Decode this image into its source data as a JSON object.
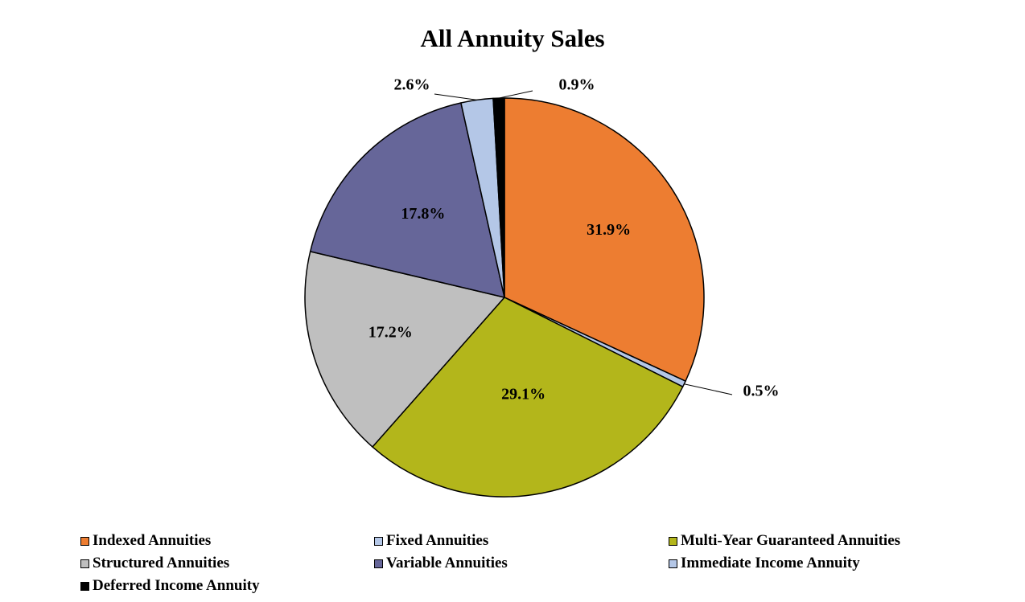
{
  "chart_data": {
    "type": "pie",
    "title": "All Annuity Sales",
    "slices": [
      {
        "name": "Indexed Annuities",
        "value": 31.9,
        "label": "31.9%",
        "color": "#ED7D31"
      },
      {
        "name": "Fixed Annuities",
        "value": 0.5,
        "label": "0.5%",
        "color": "#B4C7E7"
      },
      {
        "name": "Multi-Year Guaranteed Annuities",
        "value": 29.1,
        "label": "29.1%",
        "color": "#B3B61B"
      },
      {
        "name": "Structured Annuities",
        "value": 17.2,
        "label": "17.2%",
        "color": "#BFBFBF"
      },
      {
        "name": "Variable Annuities",
        "value": 17.8,
        "label": "17.8%",
        "color": "#666699"
      },
      {
        "name": "Immediate Income Annuity",
        "value": 2.6,
        "label": "2.6%",
        "color": "#B4C7E7"
      },
      {
        "name": "Deferred Income Annuity",
        "value": 0.9,
        "label": "0.9%",
        "color": "#000000"
      }
    ],
    "start_angle": "12 o'clock",
    "direction": "clockwise",
    "legend_position": "bottom"
  }
}
